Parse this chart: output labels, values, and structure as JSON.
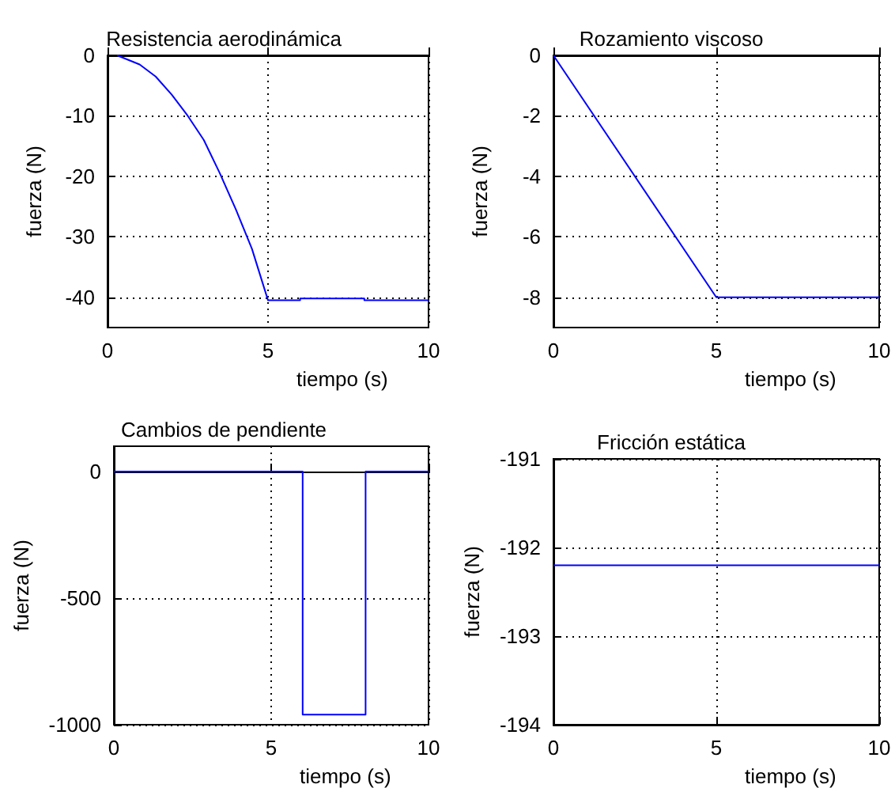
{
  "chart_data": [
    {
      "type": "line",
      "title": "Resistencia aerodinámica",
      "xlabel": "tiempo (s)",
      "ylabel": "fuerza (N)",
      "xlim": [
        0,
        10
      ],
      "ylim": [
        -45,
        0
      ],
      "xticks": [
        0,
        5,
        10
      ],
      "yticks": [
        -40,
        -30,
        -20,
        -10,
        0
      ],
      "grid": true,
      "marker": "none",
      "series": [
        {
          "color": "#0000ff",
          "x": [
            0.3,
            1,
            1.5,
            2,
            2.5,
            3,
            3.5,
            4,
            4.5,
            5,
            6,
            6,
            8,
            8,
            10
          ],
          "values": [
            0,
            -1.5,
            -3.5,
            -6.5,
            -10,
            -14,
            -19.5,
            -25.5,
            -32,
            -40.5,
            -40.5,
            -40.2,
            -40.2,
            -40.5,
            -40.5
          ]
        }
      ]
    },
    {
      "type": "line",
      "title": "Rozamiento viscoso",
      "xlabel": "tiempo (s)",
      "ylabel": "fuerza (N)",
      "xlim": [
        0,
        10
      ],
      "ylim": [
        -9,
        0
      ],
      "xticks": [
        0,
        5,
        10
      ],
      "yticks": [
        -8,
        -6,
        -4,
        -2,
        0
      ],
      "grid": true,
      "marker": "none",
      "series": [
        {
          "color": "#0000ff",
          "x": [
            0,
            5,
            10
          ],
          "values": [
            0,
            -8,
            -8
          ]
        }
      ]
    },
    {
      "type": "line",
      "title": "Cambios de pendiente",
      "xlabel": "tiempo (s)",
      "ylabel": "fuerza (N)",
      "xlim": [
        0,
        10
      ],
      "ylim": [
        -1000,
        100
      ],
      "xticks": [
        0,
        5,
        10
      ],
      "yticks": [
        -1000,
        -500,
        0
      ],
      "grid": true,
      "marker": "none",
      "series": [
        {
          "color": "#0000ff",
          "x": [
            0,
            6,
            6,
            8,
            8,
            10
          ],
          "values": [
            0,
            0,
            -960,
            -960,
            0,
            0
          ]
        }
      ]
    },
    {
      "type": "line",
      "title": "Fricción estática",
      "xlabel": "tiempo (s)",
      "ylabel": "fuerza (N)",
      "xlim": [
        0,
        10
      ],
      "ylim": [
        -194,
        -191
      ],
      "xticks": [
        0,
        5,
        10
      ],
      "yticks": [
        -194,
        -193,
        -192,
        -191
      ],
      "grid": true,
      "marker": "none",
      "series": [
        {
          "color": "#0000ff",
          "x": [
            0,
            10
          ],
          "values": [
            -192.2,
            -192.2
          ]
        }
      ]
    }
  ]
}
